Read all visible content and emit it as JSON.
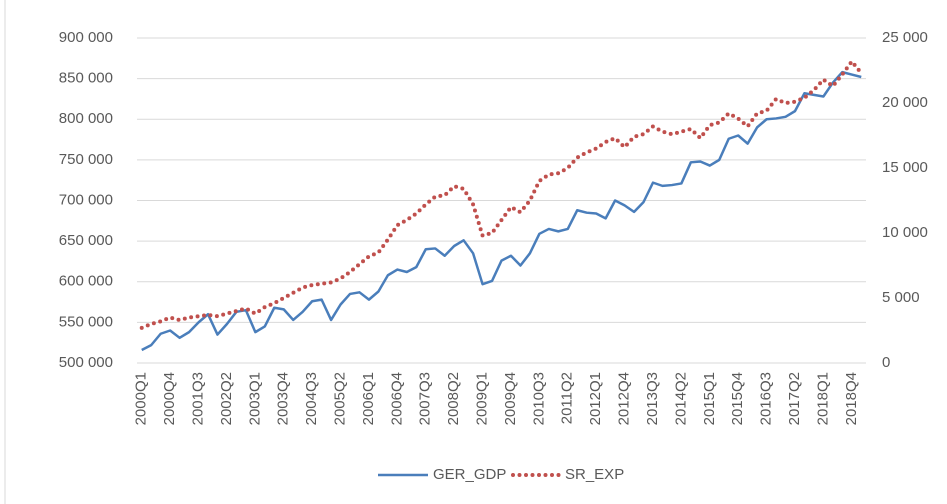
{
  "chart_data": {
    "type": "line",
    "categories": [
      "2000Q1",
      null,
      null,
      "2000Q4",
      null,
      null,
      "2001Q3",
      null,
      null,
      "2002Q2",
      null,
      null,
      "2003Q1",
      null,
      null,
      "2003Q4",
      null,
      null,
      "2004Q3",
      null,
      null,
      "2005Q2",
      null,
      null,
      "2006Q1",
      null,
      null,
      "2006Q4",
      null,
      null,
      "2007Q3",
      null,
      null,
      "2008Q2",
      null,
      null,
      "2009Q1",
      null,
      null,
      "2009Q4",
      null,
      null,
      "2010Q3",
      null,
      null,
      "2011Q2",
      null,
      null,
      "2012Q1",
      null,
      null,
      "2012Q4",
      null,
      null,
      "2013Q3",
      null,
      null,
      "2014Q2",
      null,
      null,
      "2015Q1",
      null,
      null,
      "2015Q4",
      null,
      null,
      "2016Q3",
      null,
      null,
      "2017Q2",
      null,
      null,
      "2018Q1",
      null,
      null,
      "2018Q4",
      null
    ],
    "series": [
      {
        "name": "GER_GDP",
        "color": "#4a7ebb",
        "style": "solid",
        "axis": "y",
        "values": [
          516000,
          522000,
          536000,
          540000,
          531000,
          538000,
          550000,
          560000,
          535000,
          548000,
          563000,
          565000,
          538000,
          545000,
          568000,
          566000,
          553000,
          563000,
          576000,
          578000,
          553000,
          572000,
          585000,
          587000,
          578000,
          588000,
          608000,
          615000,
          612000,
          618000,
          640000,
          641000,
          632000,
          644000,
          651000,
          635000,
          597000,
          601000,
          626000,
          632000,
          620000,
          635000,
          659000,
          665000,
          662000,
          665000,
          688000,
          685000,
          684000,
          678000,
          700000,
          694000,
          686000,
          698000,
          722000,
          718000,
          719000,
          721000,
          747000,
          748000,
          743000,
          750000,
          776000,
          780000,
          770000,
          790000,
          800000,
          801000,
          803000,
          810000,
          832000,
          830000,
          828000,
          845000,
          858000,
          855000,
          852000
        ]
      },
      {
        "name": "SR_EXP",
        "color": "#c0504d",
        "style": "dotted",
        "axis": "y2",
        "values": [
          2700,
          3000,
          3200,
          3500,
          3300,
          3500,
          3600,
          3700,
          3600,
          3800,
          4000,
          4200,
          3800,
          4300,
          4600,
          5000,
          5400,
          5800,
          6000,
          6100,
          6200,
          6500,
          7000,
          7600,
          8200,
          8500,
          9500,
          10600,
          11000,
          11500,
          12200,
          12800,
          12900,
          13600,
          13400,
          12200,
          9800,
          10000,
          11000,
          12000,
          11600,
          12500,
          14000,
          14500,
          14600,
          15000,
          15800,
          16200,
          16500,
          17000,
          17300,
          16600,
          17400,
          17600,
          18200,
          17800,
          17600,
          17800,
          18000,
          17300,
          18300,
          18500,
          19200,
          18800,
          18200,
          19200,
          19400,
          20300,
          20000,
          20100,
          20400,
          21000,
          21800,
          21300,
          22200,
          23200,
          22300
        ]
      }
    ],
    "ylim": [
      500000,
      900000
    ],
    "yticks": [
      {
        "value": 500000,
        "label": "500 000"
      },
      {
        "value": 550000,
        "label": "550 000"
      },
      {
        "value": 600000,
        "label": "600 000"
      },
      {
        "value": 650000,
        "label": "650 000"
      },
      {
        "value": 700000,
        "label": "700 000"
      },
      {
        "value": 750000,
        "label": "750 000"
      },
      {
        "value": 800000,
        "label": "800 000"
      },
      {
        "value": 850000,
        "label": "850 000"
      },
      {
        "value": 900000,
        "label": "900 000"
      }
    ],
    "y2lim": [
      0,
      25000
    ],
    "y2ticks": [
      0,
      {
        "value": 5000,
        "label": "5 000"
      },
      {
        "value": 10000,
        "label": "10 000"
      },
      {
        "value": 15000,
        "label": "15 000"
      },
      {
        "value": 20000,
        "label": "20 000"
      },
      {
        "value": 25000,
        "label": "25 000"
      }
    ],
    "grid": true,
    "legend": "bottom"
  }
}
